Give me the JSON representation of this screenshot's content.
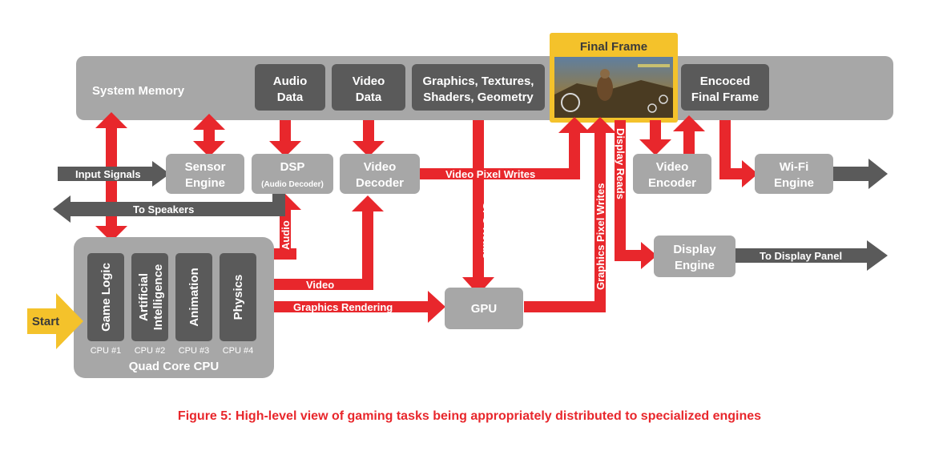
{
  "colors": {
    "red": "#e8272c",
    "dark_gray": "#5a5a5a",
    "mid_gray": "#8c8c8c",
    "light_gray": "#a7a7a7",
    "yellow": "#f4c22b",
    "caption": "#e8272c"
  },
  "system_memory": {
    "label": "System Memory",
    "audio_data": [
      "Audio",
      "Data"
    ],
    "video_data": [
      "Video",
      "Data"
    ],
    "graphics_data": [
      "Graphics, Textures,",
      "Shaders, Geometry"
    ],
    "final_frame": "Final Frame",
    "encoded_final_frame": [
      "Encoced",
      "Final Frame"
    ]
  },
  "engines": {
    "sensor": [
      "Sensor",
      "Engine"
    ],
    "dsp": "DSP",
    "dsp_sub": "(Audio Decoder)",
    "video_decoder": [
      "Video",
      "Decoder"
    ],
    "video_encoder": [
      "Video",
      "Encoder"
    ],
    "wifi": [
      "Wi-Fi",
      "Engine"
    ],
    "display": [
      "Display",
      "Engine"
    ],
    "gpu": "GPU"
  },
  "cpu": {
    "title": "Quad Core CPU",
    "cores": [
      {
        "task": [
          "Game Logic"
        ],
        "id": "CPU #1"
      },
      {
        "task": [
          "Artificial",
          "Intelligence"
        ],
        "id": "CPU #2"
      },
      {
        "task": [
          "Animation"
        ],
        "id": "CPU #3"
      },
      {
        "task": [
          "Physics"
        ],
        "id": "CPU #4"
      }
    ]
  },
  "start": "Start",
  "flows": {
    "input_signals": "Input Signals",
    "to_speakers": "To Speakers",
    "video_pixel_writes": "Video Pixel Writes",
    "gpu_reads": "GPU Reads",
    "graphics_pixel_writes": "Graphics Pixel Writes",
    "display_reads": "Display Reads",
    "audio": "Audio",
    "video": "Video",
    "graphics_rendering": "Graphics Rendering",
    "to_display_panel": "To Display Panel"
  },
  "caption": "Figure 5: High-level view of gaming tasks being appropriately distributed to specialized engines"
}
